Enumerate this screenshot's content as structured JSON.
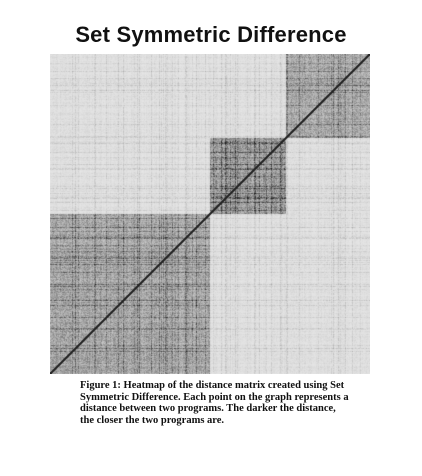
{
  "title": "Set Symmetric Difference",
  "caption": "Figure 1: Heatmap of the distance matrix created using Set Symmetric Difference. Each point on the graph represents a distance between two programs. The darker the distance, the closer the two programs are.",
  "chart_data": {
    "type": "heatmap",
    "title": "Set Symmetric Difference",
    "xlabel": "",
    "ylabel": "",
    "matrix": "symmetric distance matrix (programs x programs)",
    "diagonal": "dark line from top-right to bottom-left",
    "clusters": [
      {
        "name": "",
        "order": 1,
        "position": "top-right",
        "relative_start": 0.0,
        "relative_end": 0.26
      },
      {
        "name": "",
        "order": 2,
        "position": "center",
        "relative_start": 0.26,
        "relative_end": 0.5
      },
      {
        "name": "",
        "order": 3,
        "position": "bottom-left",
        "relative_start": 0.5,
        "relative_end": 1.0
      }
    ],
    "color_scale": {
      "low_distance": "#1a1a1a",
      "high_distance": "#e6e6e6"
    },
    "grid": false,
    "legend": "none"
  }
}
